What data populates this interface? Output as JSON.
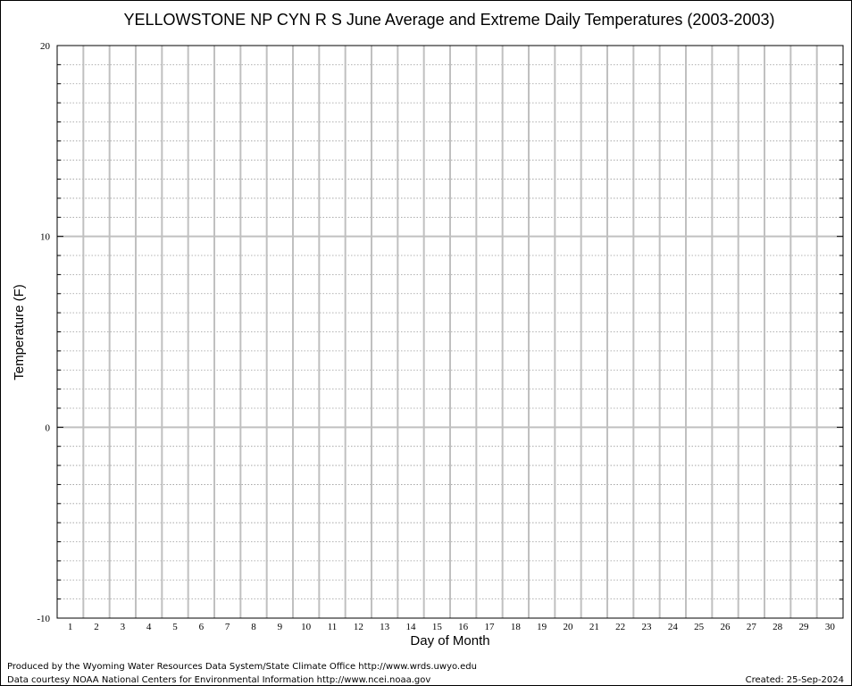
{
  "chart_data": {
    "type": "line",
    "title": "YELLOWSTONE NP CYN R S June Average and Extreme Daily Temperatures (2003-2003)",
    "xlabel": "Day of Month",
    "ylabel": "Temperature (F)",
    "xlim": [
      0,
      30
    ],
    "ylim": [
      -10,
      20
    ],
    "x_ticks": [
      1,
      2,
      3,
      4,
      5,
      6,
      7,
      8,
      9,
      10,
      11,
      12,
      13,
      14,
      15,
      16,
      17,
      18,
      19,
      20,
      21,
      22,
      23,
      24,
      25,
      26,
      27,
      28,
      29,
      30
    ],
    "y_ticks": [
      -10,
      0,
      10,
      20
    ],
    "y_minor_step": 1,
    "grid": true,
    "series": []
  },
  "footer": {
    "line1": "Produced by the Wyoming Water Resources Data System/State Climate Office http://www.wrds.uwyo.edu",
    "line2": "Data courtesy NOAA National Centers for Environmental Information http://www.ncei.noaa.gov",
    "created": "Created: 25-Sep-2024"
  }
}
